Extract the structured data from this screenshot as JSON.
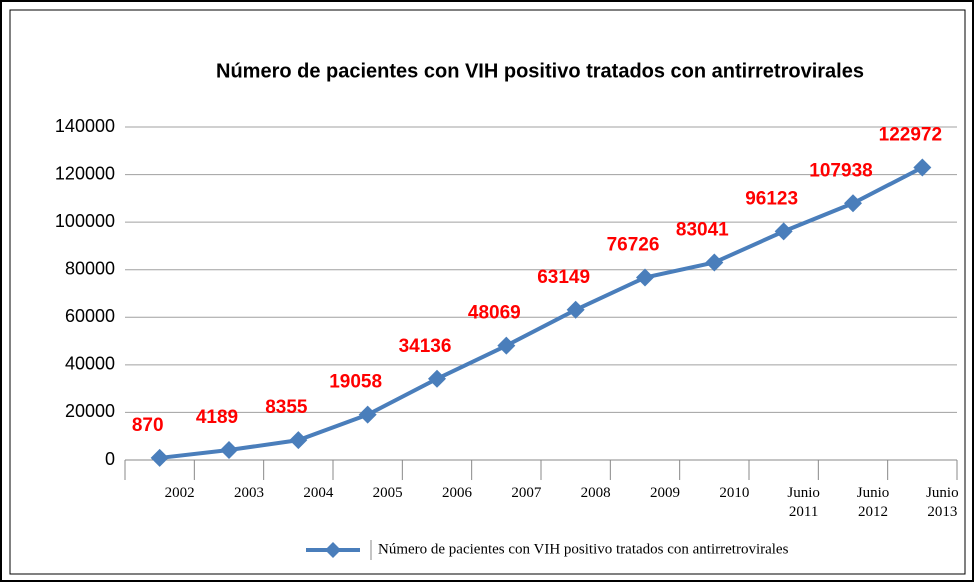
{
  "chart_data": {
    "type": "line",
    "title": "Número de pacientes con VIH positivo tratados con antirretrovirales",
    "categories": [
      "2002",
      "2003",
      "2004",
      "2005",
      "2006",
      "2007",
      "2008",
      "2009",
      "2010",
      "Junio\n2011",
      "Junio\n2012",
      "Junio\n2013"
    ],
    "series": [
      {
        "name": "Número de pacientes con VIH positivo tratados con antirretrovirales",
        "color": "#4a7ebb",
        "values": [
          870,
          4189,
          8355,
          19058,
          34136,
          48069,
          63149,
          76726,
          83041,
          96123,
          107938,
          122972
        ]
      }
    ],
    "ylim": [
      0,
      140000
    ],
    "yticks": [
      0,
      20000,
      40000,
      60000,
      80000,
      100000,
      120000,
      140000
    ],
    "grid": true,
    "value_label_color": "#ff0000"
  }
}
